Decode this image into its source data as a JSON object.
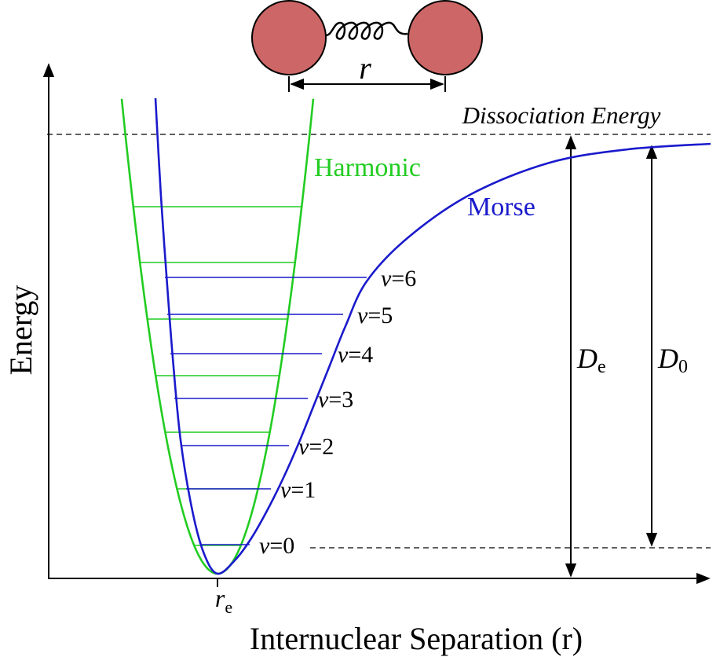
{
  "molecule": {
    "bond_label": "r"
  },
  "axes": {
    "y_title": "Energy",
    "x_title": "Internuclear Separation (r)",
    "x_marker": {
      "base": "r",
      "sub": "e"
    }
  },
  "curves": {
    "harmonic": "Harmonic",
    "morse": "Morse"
  },
  "dissociation": "Dissociation Energy",
  "energies": {
    "De": {
      "base": "D",
      "sub": "e"
    },
    "D0": {
      "base": "D",
      "sub": "0"
    }
  },
  "levels": [
    "v=0",
    "v=1",
    "v=2",
    "v=3",
    "v=4",
    "v=5",
    "v=6"
  ]
}
